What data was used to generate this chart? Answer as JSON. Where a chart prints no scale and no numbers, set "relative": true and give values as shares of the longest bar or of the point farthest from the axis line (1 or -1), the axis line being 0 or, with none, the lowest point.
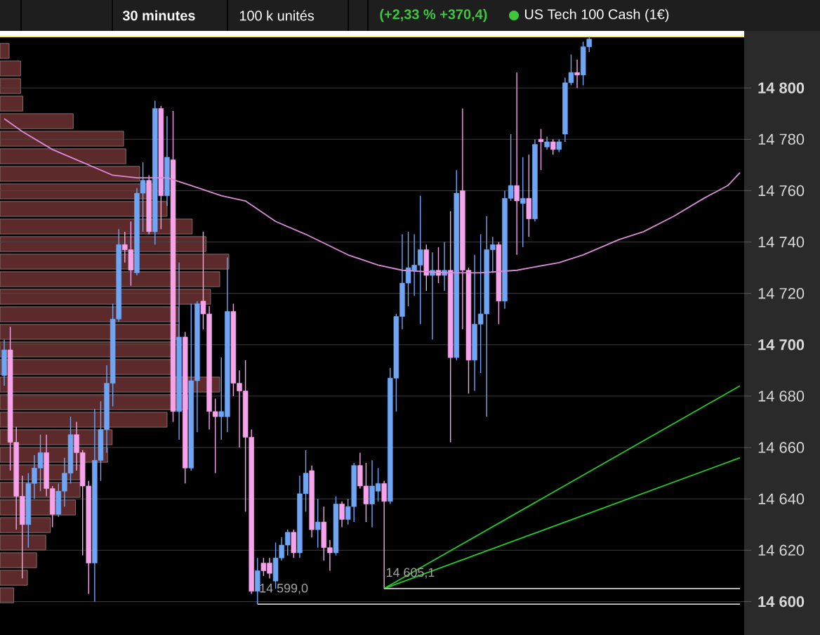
{
  "chart_data": [
    {
      "type": "candlestick",
      "title": "US Tech 100 Cash (1€)",
      "subtitle": "(+2,33 % +370,4)",
      "annotations": [
        "30 minutes",
        "100 k unités"
      ],
      "categories": [
        null,
        null,
        null,
        null,
        null,
        null,
        null,
        null,
        null,
        null,
        null,
        null,
        null,
        null,
        null,
        null,
        null,
        null,
        null,
        null,
        null,
        null,
        null,
        null,
        null,
        null,
        null,
        null,
        null,
        null,
        null,
        null,
        null,
        null,
        null,
        null,
        null,
        null,
        null,
        null,
        null,
        null,
        null,
        null,
        null,
        null,
        null,
        null,
        null,
        null,
        null,
        null,
        null,
        null,
        null,
        null,
        null,
        null,
        null,
        null,
        null,
        null,
        null,
        null,
        null,
        null,
        null,
        null,
        null,
        null,
        null,
        null,
        null,
        null,
        null,
        null,
        null,
        null,
        null,
        null,
        null,
        null,
        null,
        null,
        null,
        null,
        null,
        null,
        null,
        null,
        null,
        null,
        null,
        null,
        null,
        null,
        null,
        null,
        null,
        null,
        null,
        null,
        null,
        null,
        null,
        null,
        null,
        null,
        null,
        null,
        null,
        null,
        null,
        null,
        null,
        null,
        null,
        null,
        null,
        null,
        null,
        null,
        null
      ],
      "ohlc": [
        [
          14688,
          14702,
          14684,
          14698
        ],
        [
          14698,
          14707,
          14651,
          14662
        ],
        [
          14662,
          14668,
          14628,
          14641
        ],
        [
          14641,
          14649,
          14609,
          14630
        ],
        [
          14630,
          14650,
          14621,
          14646
        ],
        [
          14646,
          14657,
          14640,
          14652
        ],
        [
          14652,
          14665,
          14643,
          14658
        ],
        [
          14658,
          14665,
          14641,
          14644
        ],
        [
          14644,
          14645,
          14629,
          14634
        ],
        [
          14634,
          14646,
          14633,
          14643
        ],
        [
          14643,
          14656,
          14637,
          14650
        ],
        [
          14650,
          14672,
          14646,
          14665
        ],
        [
          14665,
          14670,
          14651,
          14658
        ],
        [
          14658,
          14659,
          14618,
          14645
        ],
        [
          14645,
          14647,
          14603,
          14615
        ],
        [
          14615,
          14675,
          14600,
          14655
        ],
        [
          14655,
          14678,
          14647,
          14667
        ],
        [
          14667,
          14692,
          14658,
          14685
        ],
        [
          14685,
          14716,
          14676,
          14710
        ],
        [
          14710,
          14745,
          14709,
          14739
        ],
        [
          14739,
          14744,
          14732,
          14737
        ],
        [
          14737,
          14748,
          14723,
          14729
        ],
        [
          14728,
          14761,
          14727,
          14759
        ],
        [
          14759,
          14771,
          14744,
          14764
        ],
        [
          14764,
          14766,
          14743,
          14744
        ],
        [
          14744,
          14795,
          14739,
          14792
        ],
        [
          14792,
          14793,
          14745,
          14758
        ],
        [
          14758,
          14789,
          14754,
          14773
        ],
        [
          14772,
          14791,
          14670,
          14674
        ],
        [
          14674,
          14732,
          14663,
          14703
        ],
        [
          14703,
          14705,
          14646,
          14652
        ],
        [
          14652,
          14716,
          14651,
          14686
        ],
        [
          14686,
          14717,
          14666,
          14716
        ],
        [
          14717,
          14744,
          14706,
          14712
        ],
        [
          14712,
          14715,
          14667,
          14674
        ],
        [
          14674,
          14679,
          14650,
          14672
        ],
        [
          14672,
          14695,
          14663,
          14674
        ],
        [
          14672,
          14734,
          14666,
          14713
        ],
        [
          14713,
          14716,
          14680,
          14685
        ],
        [
          14685,
          14690,
          14660,
          14682
        ],
        [
          14682,
          14694,
          14635,
          14664
        ],
        [
          14664,
          14667,
          14603,
          14604
        ],
        [
          14604,
          14617,
          14599.0,
          14612
        ],
        [
          14615,
          14617,
          14610,
          14612
        ],
        [
          14615,
          14617,
          14609,
          14611
        ],
        [
          14608,
          14623,
          14605,
          14617
        ],
        [
          14617,
          14625,
          14616,
          14622
        ],
        [
          14622,
          14628,
          14618,
          14627
        ],
        [
          14627,
          14628,
          14617,
          14619
        ],
        [
          14619,
          14649,
          14617,
          14642
        ],
        [
          14642,
          14659,
          14635,
          14650
        ],
        [
          14651,
          14653,
          14625,
          14628
        ],
        [
          14628,
          14640,
          14621,
          14631
        ],
        [
          14631,
          14637,
          14616,
          14621
        ],
        [
          14621,
          14624,
          14612,
          14619
        ],
        [
          14619,
          14641,
          14618,
          14638
        ],
        [
          14638,
          14639,
          14629,
          14632
        ],
        [
          14632,
          14640,
          14630,
          14637
        ],
        [
          14637,
          14654,
          14631,
          14653
        ],
        [
          14653,
          14658,
          14644,
          14645
        ],
        [
          14645,
          14654,
          14631,
          14638
        ],
        [
          14638,
          14655,
          14629,
          14645
        ],
        [
          14643,
          14652,
          14639,
          14646
        ],
        [
          14646,
          14647,
          14605.1,
          14639
        ],
        [
          14639,
          14691,
          14638,
          14687
        ],
        [
          14687,
          14712,
          14674,
          14711
        ],
        [
          14711,
          14743,
          14706,
          14724
        ],
        [
          14724,
          14744,
          14715,
          14730
        ],
        [
          14729,
          14743,
          14719,
          14731
        ],
        [
          14731,
          14758,
          14708,
          14737
        ],
        [
          14737,
          14739,
          14721,
          14727
        ],
        [
          14727,
          14736,
          14702,
          14729
        ],
        [
          14729,
          14738,
          14724,
          14727
        ],
        [
          14727,
          14740,
          14721,
          14729
        ],
        [
          14729,
          14752,
          14662,
          14695
        ],
        [
          14695,
          14768,
          14694,
          14759
        ],
        [
          14760,
          14792,
          14706,
          14729
        ],
        [
          14729,
          14730,
          14681,
          14694
        ],
        [
          14694,
          14735,
          14682,
          14708
        ],
        [
          14708,
          14743,
          14689,
          14712
        ],
        [
          14712,
          14750,
          14672,
          14737
        ],
        [
          14737,
          14742,
          14728,
          14739
        ],
        [
          14739,
          14740,
          14708,
          14717
        ],
        [
          14717,
          14760,
          14714,
          14757
        ],
        [
          14757,
          14782,
          14756,
          14762
        ],
        [
          14762,
          14806,
          14735,
          14756
        ],
        [
          14755,
          14773,
          14738,
          14757
        ],
        [
          14757,
          14774,
          14742,
          14749
        ],
        [
          14749,
          14780,
          14748,
          14778
        ],
        [
          14780,
          14784,
          14768,
          14779
        ],
        [
          14777,
          14781,
          14776,
          14779
        ],
        [
          14779,
          14780,
          14774,
          14776
        ],
        [
          14776,
          14780,
          14775,
          14779
        ],
        [
          14782,
          14804,
          14779,
          14802
        ],
        [
          14802,
          14813,
          14801,
          14806
        ],
        [
          14806,
          14811,
          14800,
          14805
        ],
        [
          14805,
          14818,
          14801,
          14816
        ],
        [
          14816,
          14820,
          14814,
          14819
        ],
        null,
        null,
        null,
        null,
        null,
        null,
        null,
        null,
        null,
        null,
        null,
        null,
        null,
        null,
        null,
        null,
        null,
        null,
        null,
        null,
        null,
        null,
        null,
        null,
        null
      ],
      "colors": [
        "#6ea6f5",
        "#f5a3ea",
        "#f5a3ea",
        "#f5a3ea",
        "#6ea6f5",
        "#6ea6f5",
        "#6ea6f5",
        "#f5a3ea",
        "#f5a3ea",
        "#6ea6f5",
        "#6ea6f5",
        "#6ea6f5",
        "#f5a3ea",
        "#f5a3ea",
        "#f5a3ea",
        "#6ea6f5",
        "#6ea6f5",
        "#6ea6f5",
        "#6ea6f5",
        "#6ea6f5",
        "#f5a3ea",
        "#f5a3ea",
        "#6ea6f5",
        "#6ea6f5",
        "#f5a3ea",
        "#6ea6f5",
        "#f5a3ea",
        "#6ea6f5",
        "#f5a3ea",
        "#6ea6f5",
        "#f5a3ea",
        "#6ea6f5",
        "#6ea6f5",
        "#f5a3ea",
        "#f5a3ea",
        "#f5a3ea",
        "#6ea6f5",
        "#6ea6f5",
        "#f5a3ea",
        "#f5a3ea",
        "#f5a3ea",
        "#f5a3ea",
        "#6ea6f5",
        "#f5a3ea",
        "#f5a3ea",
        "#6ea6f5",
        "#6ea6f5",
        "#6ea6f5",
        "#f5a3ea",
        "#6ea6f5",
        "#6ea6f5",
        "#f5a3ea",
        "#6ea6f5",
        "#f5a3ea",
        "#f5a3ea",
        "#6ea6f5",
        "#f5a3ea",
        "#6ea6f5",
        "#6ea6f5",
        "#f5a3ea",
        "#f5a3ea",
        "#6ea6f5",
        "#6ea6f5",
        "#f5a3ea",
        "#6ea6f5",
        "#6ea6f5",
        "#6ea6f5",
        "#6ea6f5",
        "#6ea6f5",
        "#6ea6f5",
        "#f5a3ea",
        "#6ea6f5",
        "#f5a3ea",
        "#6ea6f5",
        "#f5a3ea",
        "#6ea6f5",
        "#f5a3ea",
        "#f5a3ea",
        "#6ea6f5",
        "#6ea6f5",
        "#6ea6f5",
        "#6ea6f5",
        "#f5a3ea",
        "#6ea6f5",
        "#6ea6f5",
        "#f5a3ea",
        "#6ea6f5",
        "#f5a3ea",
        "#6ea6f5",
        "#f5a3ea",
        "#6ea6f5",
        "#f5a3ea",
        "#6ea6f5",
        "#6ea6f5",
        "#6ea6f5",
        "#f5a3ea",
        "#6ea6f5",
        "#6ea6f5",
        null,
        null,
        null,
        null,
        null,
        null,
        null,
        null,
        null,
        null,
        null,
        null,
        null,
        null,
        null,
        null,
        null,
        null,
        null,
        null,
        null,
        null,
        null,
        null,
        null
      ],
      "series": [
        {
          "type": "line",
          "color": "#d98ad9",
          "values": [
            14788,
            null,
            null,
            14783,
            null,
            null,
            null,
            null,
            14776,
            null,
            null,
            null,
            null,
            14771,
            null,
            null,
            null,
            null,
            14766,
            null,
            null,
            null,
            14765,
            null,
            null,
            null,
            null,
            14765,
            null,
            null,
            null,
            14762,
            null,
            null,
            null,
            null,
            14758,
            null,
            null,
            null,
            14756,
            null,
            null,
            null,
            null,
            14748,
            null,
            null,
            null,
            null,
            14743,
            null,
            null,
            null,
            null,
            null,
            null,
            14735,
            null,
            null,
            null,
            null,
            14731,
            null,
            null,
            null,
            14729,
            null,
            null,
            null,
            null,
            null,
            null,
            14728,
            null,
            null,
            null,
            null,
            null,
            14728,
            null,
            null,
            null,
            null,
            null,
            14729,
            null,
            null,
            null,
            null,
            null,
            null,
            14732,
            null,
            null,
            null,
            14735,
            null,
            null,
            null,
            null,
            null,
            14741,
            null,
            null,
            null,
            14744,
            null,
            null,
            null,
            null,
            14750,
            null,
            null,
            null,
            null,
            14757,
            null,
            null,
            null,
            14762,
            null,
            14767
          ]
        },
        {
          "type": "line",
          "color": "#22cc22",
          "values": [
            null,
            null,
            null,
            null,
            null,
            null,
            null,
            null,
            null,
            null,
            null,
            null,
            null,
            null,
            null,
            null,
            null,
            null,
            null,
            null,
            null,
            null,
            null,
            null,
            null,
            null,
            null,
            null,
            null,
            null,
            null,
            null,
            null,
            null,
            null,
            null,
            null,
            null,
            null,
            null,
            null,
            null,
            null,
            null,
            null,
            null,
            null,
            null,
            null,
            null,
            null,
            null,
            null,
            null,
            null,
            null,
            null,
            null,
            null,
            null,
            null,
            null,
            null,
            14605.1,
            null,
            null,
            null,
            null,
            null,
            null,
            null,
            null,
            null,
            null,
            null,
            null,
            null,
            null,
            null,
            null,
            null,
            null,
            null,
            null,
            null,
            null,
            null,
            null,
            null,
            null,
            null,
            null,
            null,
            null,
            null,
            null,
            null,
            null,
            null,
            null,
            null,
            null,
            null,
            null,
            null,
            null,
            null,
            null,
            null,
            null,
            null,
            null,
            null,
            null,
            null,
            null,
            null,
            null,
            null,
            null,
            null,
            null,
            14684
          ]
        },
        {
          "type": "line",
          "color": "#22cc22",
          "values": [
            null,
            null,
            null,
            null,
            null,
            null,
            null,
            null,
            null,
            null,
            null,
            null,
            null,
            null,
            null,
            null,
            null,
            null,
            null,
            null,
            null,
            null,
            null,
            null,
            null,
            null,
            null,
            null,
            null,
            null,
            null,
            null,
            null,
            null,
            null,
            null,
            null,
            null,
            null,
            null,
            null,
            null,
            null,
            null,
            null,
            null,
            null,
            null,
            null,
            null,
            null,
            null,
            null,
            null,
            null,
            null,
            null,
            null,
            null,
            null,
            null,
            null,
            null,
            14605.1,
            null,
            null,
            null,
            null,
            null,
            null,
            null,
            null,
            null,
            null,
            null,
            null,
            null,
            null,
            null,
            null,
            null,
            null,
            null,
            null,
            null,
            null,
            null,
            null,
            null,
            null,
            null,
            null,
            null,
            null,
            null,
            null,
            null,
            null,
            null,
            null,
            null,
            null,
            null,
            null,
            null,
            null,
            null,
            null,
            null,
            null,
            null,
            null,
            null,
            null,
            null,
            null,
            null,
            null,
            null,
            null,
            null,
            null,
            14656
          ]
        },
        {
          "type": "line",
          "color": "#cfcfcf",
          "name": "14 599,0",
          "values": [
            null,
            null,
            null,
            null,
            null,
            null,
            null,
            null,
            null,
            null,
            null,
            null,
            null,
            null,
            null,
            null,
            null,
            null,
            null,
            null,
            null,
            null,
            null,
            null,
            null,
            null,
            null,
            null,
            null,
            null,
            null,
            null,
            null,
            null,
            null,
            null,
            null,
            null,
            null,
            null,
            null,
            null,
            14599.0,
            null,
            null,
            null,
            null,
            null,
            null,
            null,
            null,
            null,
            null,
            null,
            null,
            null,
            null,
            null,
            null,
            null,
            null,
            null,
            null,
            null,
            null,
            null,
            null,
            null,
            null,
            null,
            null,
            null,
            null,
            null,
            null,
            null,
            null,
            null,
            null,
            null,
            null,
            null,
            null,
            null,
            null,
            null,
            null,
            null,
            null,
            null,
            null,
            null,
            null,
            null,
            null,
            null,
            null,
            null,
            null,
            null,
            null,
            null,
            null,
            null,
            null,
            null,
            null,
            null,
            null,
            null,
            null,
            null,
            null,
            null,
            null,
            null,
            null,
            null,
            null,
            null,
            null,
            null,
            14599.0
          ]
        },
        {
          "type": "line",
          "color": "#cfcfcf",
          "name": "14 605,1",
          "values": [
            null,
            null,
            null,
            null,
            null,
            null,
            null,
            null,
            null,
            null,
            null,
            null,
            null,
            null,
            null,
            null,
            null,
            null,
            null,
            null,
            null,
            null,
            null,
            null,
            null,
            null,
            null,
            null,
            null,
            null,
            null,
            null,
            null,
            null,
            null,
            null,
            null,
            null,
            null,
            null,
            null,
            null,
            null,
            null,
            null,
            null,
            null,
            null,
            null,
            null,
            null,
            null,
            null,
            null,
            null,
            null,
            null,
            null,
            null,
            null,
            null,
            null,
            null,
            14605.1,
            null,
            null,
            null,
            null,
            null,
            null,
            null,
            null,
            null,
            null,
            null,
            null,
            null,
            null,
            null,
            null,
            null,
            null,
            null,
            null,
            null,
            null,
            null,
            null,
            null,
            null,
            null,
            null,
            null,
            null,
            null,
            null,
            null,
            null,
            null,
            null,
            null,
            null,
            null,
            null,
            null,
            null,
            null,
            null,
            null,
            null,
            null,
            null,
            null,
            null,
            null,
            null,
            null,
            null,
            null,
            null,
            null,
            null,
            14605.1
          ]
        }
      ],
      "ylim": [
        14587,
        14820
      ],
      "yticks": [
        {
          "value": 14600,
          "label": "14 600"
        },
        {
          "value": 14620,
          "label": "14 620"
        },
        {
          "value": 14640,
          "label": "14 640"
        },
        {
          "value": 14660,
          "label": "14 660"
        },
        {
          "value": 14680,
          "label": "14 680"
        },
        {
          "value": 14700,
          "label": "14 700"
        },
        {
          "value": 14720,
          "label": "14 720"
        },
        {
          "value": 14740,
          "label": "14 740"
        },
        {
          "value": 14760,
          "label": "14 760"
        },
        {
          "value": 14780,
          "label": "14 780"
        },
        {
          "value": 14800,
          "label": "14 800"
        }
      ],
      "grid": "y",
      "tick_labels": "y"
    },
    {
      "type": "bar",
      "orientation": "horizontal",
      "relative": true,
      "color": "#5c2a2a",
      "categories": [
        null,
        null,
        null,
        null,
        null,
        null,
        null,
        null,
        null,
        null,
        null,
        null,
        null,
        null,
        null,
        null,
        null,
        null,
        null,
        null,
        null,
        null,
        null,
        null,
        null,
        null,
        null,
        null,
        null,
        null,
        null,
        null
      ],
      "values": [
        0.04,
        0.09,
        0.09,
        0.1,
        0.32,
        0.54,
        0.55,
        0.61,
        0.67,
        0.73,
        0.84,
        0.9,
        1,
        0.96,
        0.92,
        0.78,
        0.78,
        0.76,
        0.76,
        0.96,
        0.82,
        0.73,
        0.49,
        0.47,
        0.35,
        0.35,
        0.33,
        0.22,
        0.2,
        0.16,
        0.12,
        0.06
      ]
    }
  ]
}
